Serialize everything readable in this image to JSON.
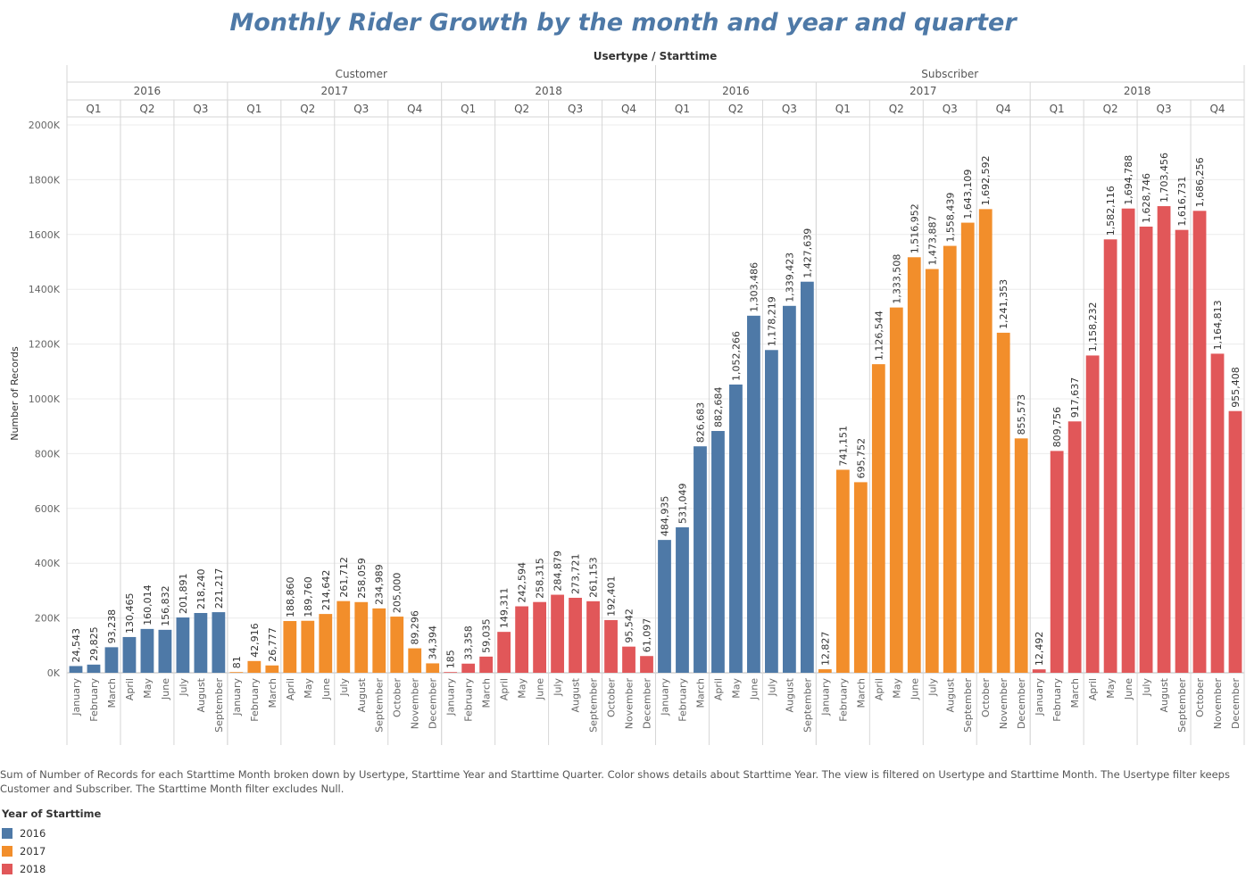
{
  "chart_data": {
    "type": "bar",
    "title": "Monthly Rider Growth by the month and year and quarter",
    "column_header": "Usertype / Starttime",
    "ylabel": "Number of Records",
    "ylim": [
      0,
      2000000
    ],
    "yticks": [
      {
        "value": 0,
        "label": "0K"
      },
      {
        "value": 200000,
        "label": "200K"
      },
      {
        "value": 400000,
        "label": "400K"
      },
      {
        "value": 600000,
        "label": "600K"
      },
      {
        "value": 800000,
        "label": "800K"
      },
      {
        "value": 1000000,
        "label": "1000K"
      },
      {
        "value": 1200000,
        "label": "1200K"
      },
      {
        "value": 1400000,
        "label": "1400K"
      },
      {
        "value": 1600000,
        "label": "1600K"
      },
      {
        "value": 1800000,
        "label": "1800K"
      },
      {
        "value": 2000000,
        "label": "2000K"
      }
    ],
    "grid": true,
    "colors": {
      "2016": "#4e79a7",
      "2017": "#f28e2b",
      "2018": "#e15759"
    },
    "usertypes": [
      {
        "name": "Customer",
        "years": [
          {
            "year": "2016",
            "quarters": [
              {
                "name": "Q1",
                "months": [
                  [
                    "January",
                    24543,
                    "24,543"
                  ],
                  [
                    "February",
                    29825,
                    "29,825"
                  ],
                  [
                    "March",
                    93238,
                    "93,238"
                  ]
                ]
              },
              {
                "name": "Q2",
                "months": [
                  [
                    "April",
                    130465,
                    "130,465"
                  ],
                  [
                    "May",
                    160014,
                    "160,014"
                  ],
                  [
                    "June",
                    156832,
                    "156,832"
                  ]
                ]
              },
              {
                "name": "Q3",
                "months": [
                  [
                    "July",
                    201891,
                    "201,891"
                  ],
                  [
                    "August",
                    218240,
                    "218,240"
                  ],
                  [
                    "September",
                    221217,
                    "221,217"
                  ]
                ]
              }
            ]
          },
          {
            "year": "2017",
            "quarters": [
              {
                "name": "Q1",
                "months": [
                  [
                    "January",
                    81,
                    "81"
                  ],
                  [
                    "February",
                    42916,
                    "42,916"
                  ],
                  [
                    "March",
                    26777,
                    "26,777"
                  ]
                ]
              },
              {
                "name": "Q2",
                "months": [
                  [
                    "April",
                    188860,
                    "188,860"
                  ],
                  [
                    "May",
                    189760,
                    "189,760"
                  ],
                  [
                    "June",
                    214642,
                    "214,642"
                  ]
                ]
              },
              {
                "name": "Q3",
                "months": [
                  [
                    "July",
                    261712,
                    "261,712"
                  ],
                  [
                    "August",
                    258059,
                    "258,059"
                  ],
                  [
                    "September",
                    234989,
                    "234,989"
                  ]
                ]
              },
              {
                "name": "Q4",
                "months": [
                  [
                    "October",
                    205000,
                    "205,000"
                  ],
                  [
                    "November",
                    89296,
                    "89,296"
                  ],
                  [
                    "December",
                    34394,
                    "34,394"
                  ]
                ]
              }
            ]
          },
          {
            "year": "2018",
            "quarters": [
              {
                "name": "Q1",
                "months": [
                  [
                    "January",
                    185,
                    "185"
                  ],
                  [
                    "February",
                    33358,
                    "33,358"
                  ],
                  [
                    "March",
                    59035,
                    "59,035"
                  ]
                ]
              },
              {
                "name": "Q2",
                "months": [
                  [
                    "April",
                    149311,
                    "149,311"
                  ],
                  [
                    "May",
                    242594,
                    "242,594"
                  ],
                  [
                    "June",
                    258315,
                    "258,315"
                  ]
                ]
              },
              {
                "name": "Q3",
                "months": [
                  [
                    "July",
                    284879,
                    "284,879"
                  ],
                  [
                    "August",
                    273721,
                    "273,721"
                  ],
                  [
                    "September",
                    261153,
                    "261,153"
                  ]
                ]
              },
              {
                "name": "Q4",
                "months": [
                  [
                    "October",
                    192401,
                    "192,401"
                  ],
                  [
                    "November",
                    95542,
                    "95,542"
                  ],
                  [
                    "December",
                    61097,
                    "61,097"
                  ]
                ]
              }
            ]
          }
        ]
      },
      {
        "name": "Subscriber",
        "years": [
          {
            "year": "2016",
            "quarters": [
              {
                "name": "Q1",
                "months": [
                  [
                    "January",
                    484935,
                    "484,935"
                  ],
                  [
                    "February",
                    531049,
                    "531,049"
                  ],
                  [
                    "March",
                    826683,
                    "826,683"
                  ]
                ]
              },
              {
                "name": "Q2",
                "months": [
                  [
                    "April",
                    882684,
                    "882,684"
                  ],
                  [
                    "May",
                    1052266,
                    "1,052,266"
                  ],
                  [
                    "June",
                    1303486,
                    "1,303,486"
                  ]
                ]
              },
              {
                "name": "Q3",
                "months": [
                  [
                    "July",
                    1178219,
                    "1,178,219"
                  ],
                  [
                    "August",
                    1339423,
                    "1,339,423"
                  ],
                  [
                    "September",
                    1427639,
                    "1,427,639"
                  ]
                ]
              }
            ]
          },
          {
            "year": "2017",
            "quarters": [
              {
                "name": "Q1",
                "months": [
                  [
                    "January",
                    12827,
                    "12,827"
                  ],
                  [
                    "February",
                    741151,
                    "741,151"
                  ],
                  [
                    "March",
                    695752,
                    "695,752"
                  ]
                ]
              },
              {
                "name": "Q2",
                "months": [
                  [
                    "April",
                    1126544,
                    "1,126,544"
                  ],
                  [
                    "May",
                    1333508,
                    "1,333,508"
                  ],
                  [
                    "June",
                    1516952,
                    "1,516,952"
                  ]
                ]
              },
              {
                "name": "Q3",
                "months": [
                  [
                    "July",
                    1473887,
                    "1,473,887"
                  ],
                  [
                    "August",
                    1558439,
                    "1,558,439"
                  ],
                  [
                    "September",
                    1643109,
                    "1,643,109"
                  ]
                ]
              },
              {
                "name": "Q4",
                "months": [
                  [
                    "October",
                    1692592,
                    "1,692,592"
                  ],
                  [
                    "November",
                    1241353,
                    "1,241,353"
                  ],
                  [
                    "December",
                    855573,
                    "855,573"
                  ]
                ]
              }
            ]
          },
          {
            "year": "2018",
            "quarters": [
              {
                "name": "Q1",
                "months": [
                  [
                    "January",
                    12492,
                    "12,492"
                  ],
                  [
                    "February",
                    809756,
                    "809,756"
                  ],
                  [
                    "March",
                    917637,
                    "917,637"
                  ]
                ]
              },
              {
                "name": "Q2",
                "months": [
                  [
                    "April",
                    1158232,
                    "1,158,232"
                  ],
                  [
                    "May",
                    1582116,
                    "1,582,116"
                  ],
                  [
                    "June",
                    1694788,
                    "1,694,788"
                  ]
                ]
              },
              {
                "name": "Q3",
                "months": [
                  [
                    "July",
                    1628746,
                    "1,628,746"
                  ],
                  [
                    "August",
                    1703456,
                    "1,703,456"
                  ],
                  [
                    "September",
                    1616731,
                    "1,616,731"
                  ]
                ]
              },
              {
                "name": "Q4",
                "months": [
                  [
                    "October",
                    1686256,
                    "1,686,256"
                  ],
                  [
                    "November",
                    1164813,
                    "1,164,813"
                  ],
                  [
                    "December",
                    955408,
                    "955,408"
                  ]
                ]
              }
            ]
          }
        ]
      }
    ]
  },
  "caption": "Sum of Number of Records for each Starttime Month broken down by Usertype, Starttime Year and Starttime Quarter.  Color shows details about Starttime Year. The view is filtered on Usertype and Starttime Month. The Usertype filter keeps Customer and Subscriber. The Starttime Month filter excludes Null.",
  "legend": {
    "title": "Year of Starttime",
    "items": [
      {
        "label": "2016",
        "color": "#4e79a7"
      },
      {
        "label": "2017",
        "color": "#f28e2b"
      },
      {
        "label": "2018",
        "color": "#e15759"
      }
    ]
  }
}
